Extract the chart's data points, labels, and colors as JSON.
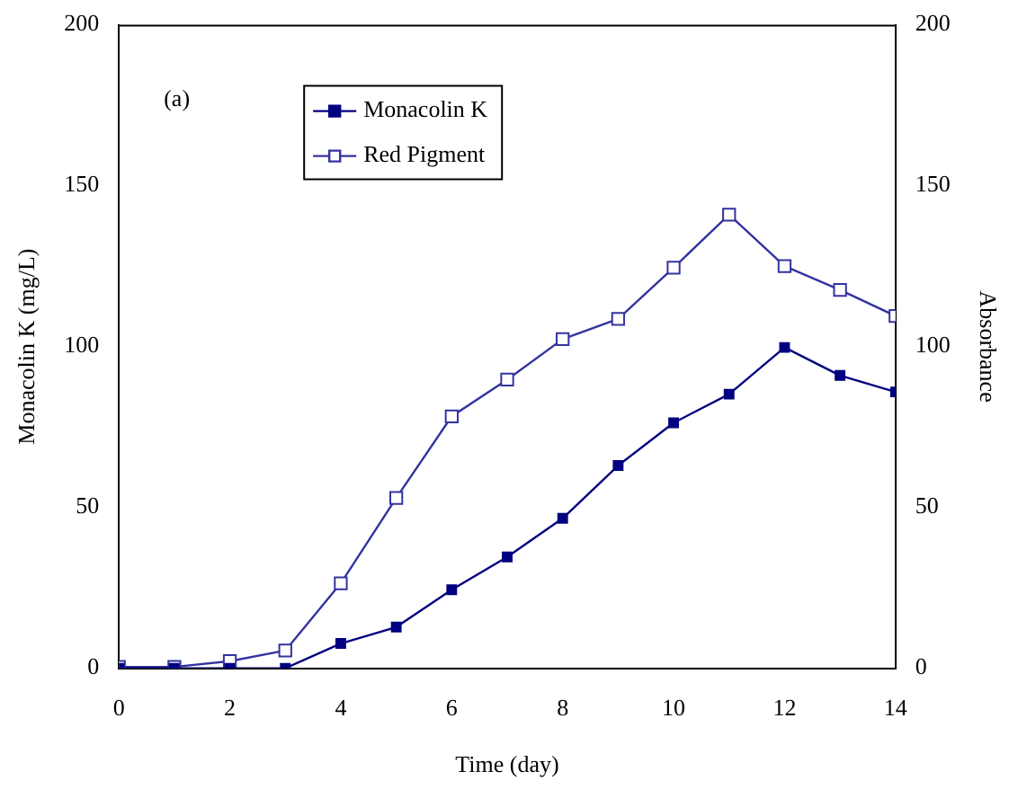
{
  "chart_data": {
    "type": "line",
    "xlabel": "Time (day)",
    "ylabel": "Monacolin K (mg/L)",
    "y2label": "Absorbance",
    "annotations": [
      "(a)"
    ],
    "x": [
      0,
      1,
      2,
      3,
      4,
      5,
      6,
      7,
      8,
      9,
      10,
      11,
      12,
      13,
      14
    ],
    "series": [
      {
        "name": "Monacolin K",
        "color": "#000080",
        "values": [
          0,
          0,
          0,
          0,
          7.7,
          12.8,
          24.4,
          34.6,
          46.6,
          63,
          76.3,
          85.2,
          99.7,
          91,
          85.9
        ]
      },
      {
        "name": "Red Pigment",
        "color": "#3333a0",
        "axis": "y2",
        "values": [
          0.4,
          0.4,
          2.2,
          5.5,
          26.4,
          52.9,
          78.3,
          89.7,
          102.3,
          108.6,
          124.5,
          141,
          125,
          117.6,
          109.5
        ]
      }
    ],
    "xlim": [
      0,
      14
    ],
    "xticks": [
      0,
      2,
      4,
      6,
      8,
      10,
      12,
      14
    ],
    "ylim": [
      0,
      200
    ],
    "yticks": [
      0,
      50,
      100,
      150,
      200
    ],
    "y2lim": [
      0,
      200
    ],
    "y2ticks": [
      0,
      50,
      100,
      150,
      200
    ],
    "grid": false,
    "legend": "top left",
    "marker": "square",
    "line_style": "solid"
  }
}
